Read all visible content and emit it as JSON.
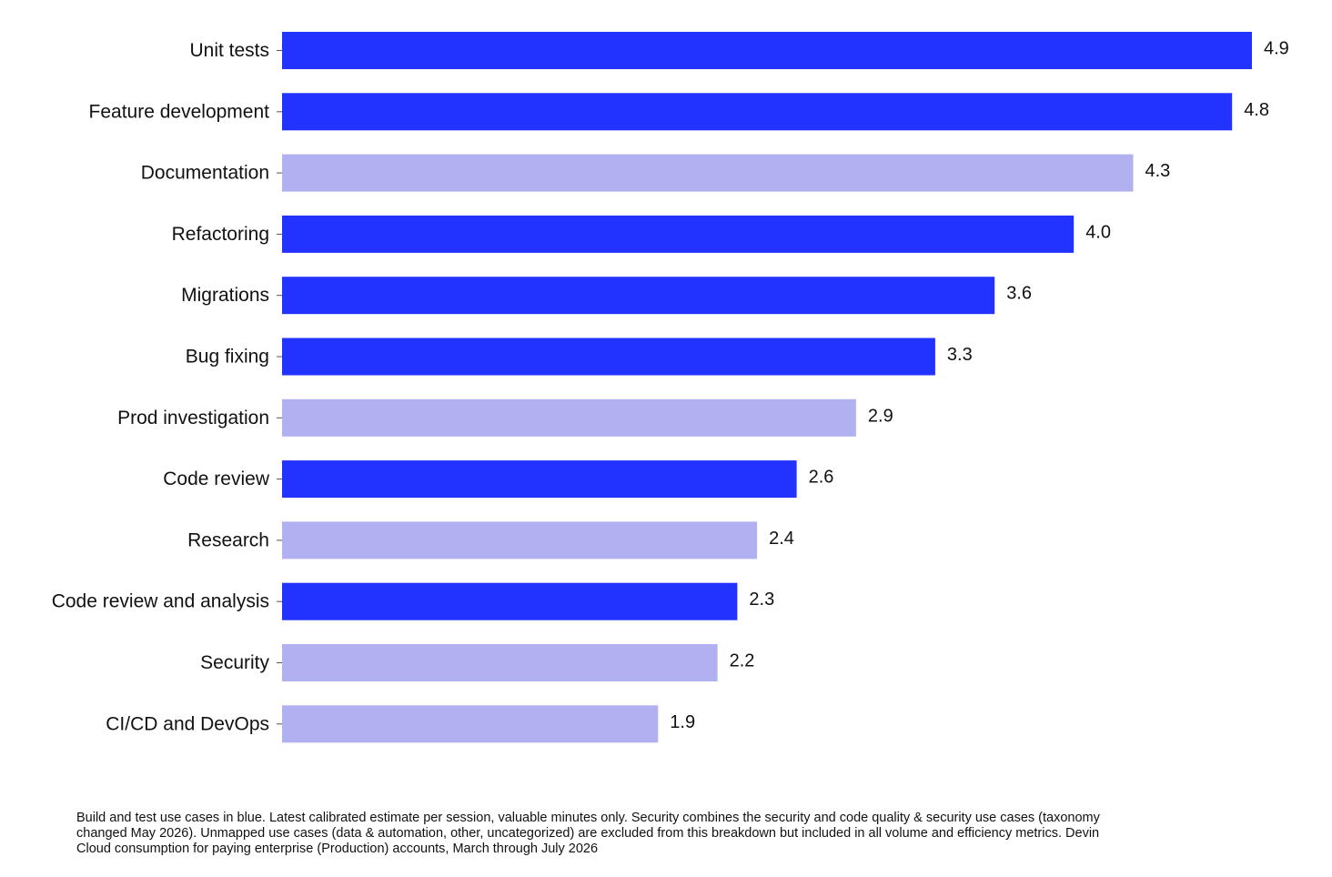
{
  "chart_data": {
    "type": "bar",
    "orientation": "horizontal",
    "categories": [
      "Unit tests",
      "Feature development",
      "Documentation",
      "Refactoring",
      "Migrations",
      "Bug fixing",
      "Prod investigation",
      "Code review",
      "Research",
      "Code review and analysis",
      "Security",
      "CI/CD and DevOps"
    ],
    "values": [
      4.9,
      4.8,
      4.3,
      4.0,
      3.6,
      3.3,
      2.9,
      2.6,
      2.4,
      2.3,
      2.2,
      1.9
    ],
    "value_labels": [
      "4.9",
      "4.8",
      "4.3",
      "4.0",
      "3.6",
      "3.3",
      "2.9",
      "2.6",
      "2.4",
      "2.3",
      "2.2",
      "1.9"
    ],
    "build_and_test": [
      true,
      true,
      false,
      true,
      true,
      true,
      false,
      true,
      false,
      true,
      false,
      false
    ],
    "colors": {
      "build_and_test": "#2233ff",
      "other": "#b1b1f1"
    },
    "xlim": [
      0,
      4.9
    ],
    "grid": false,
    "title": "",
    "xlabel": "",
    "ylabel": ""
  },
  "footnote": "Build and test use cases in blue. Latest calibrated estimate per session, valuable minutes only. Security combines the security and code quality & security use cases (taxonomy changed May 2026). Unmapped use cases (data & automation, other, uncategorized) are excluded from this breakdown but included in all volume and efficiency metrics. Devin Cloud consumption for paying enterprise (Production) accounts, March through July 2026"
}
